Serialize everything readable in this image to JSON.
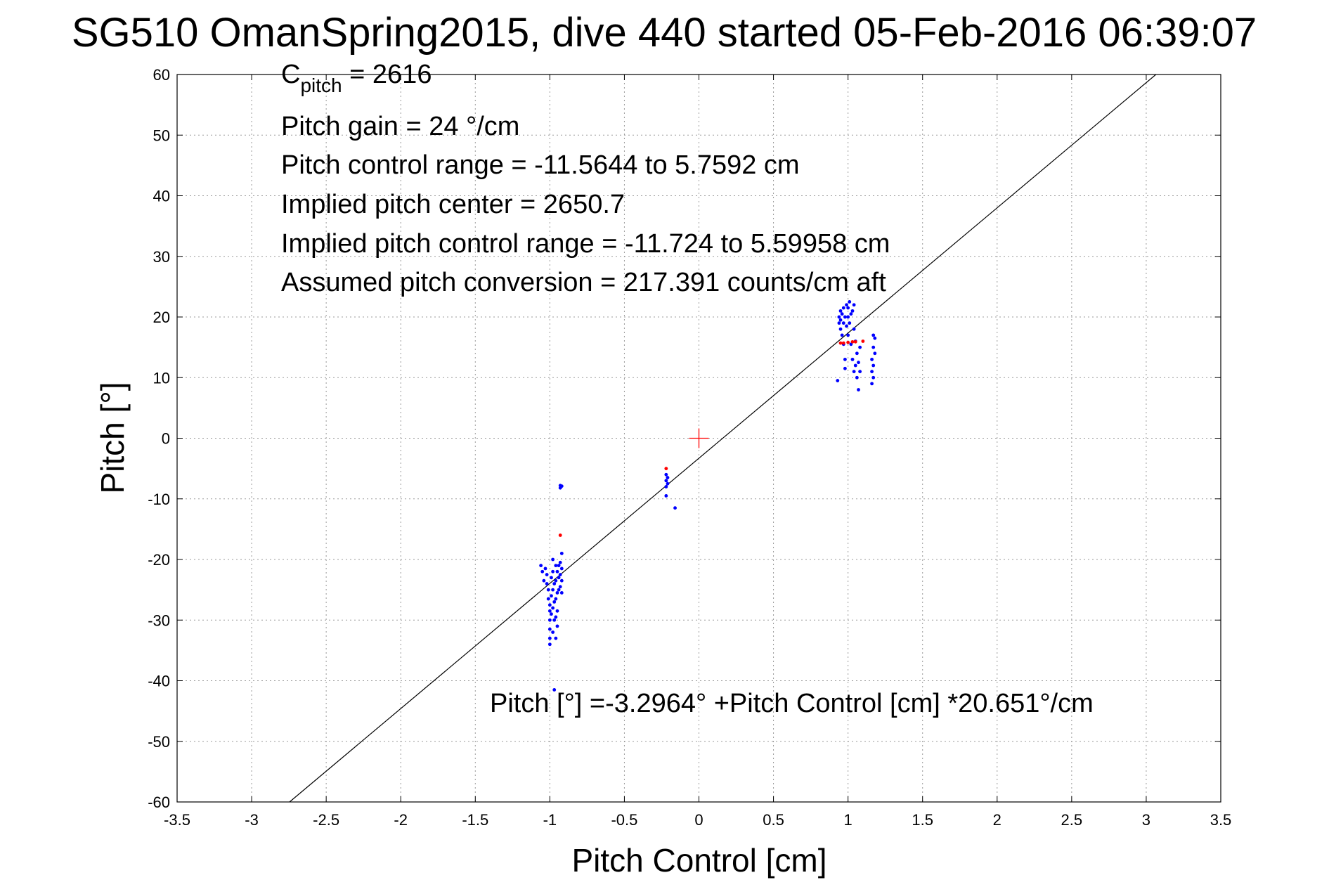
{
  "chart_data": {
    "type": "scatter",
    "title": "SG510 OmanSpring2015, dive 440 started 05-Feb-2016 06:39:07",
    "xlabel": "Pitch Control [cm]",
    "ylabel": "Pitch [°]",
    "xlim": [
      -3.5,
      3.5
    ],
    "ylim": [
      -60,
      60
    ],
    "xticks": [
      -3.5,
      -3,
      -2.5,
      -2,
      -1.5,
      -1,
      -0.5,
      0,
      0.5,
      1,
      1.5,
      2,
      2.5,
      3,
      3.5
    ],
    "yticks": [
      -60,
      -50,
      -40,
      -30,
      -20,
      -10,
      0,
      10,
      20,
      30,
      40,
      50,
      60
    ],
    "grid": true,
    "colors": {
      "main_points": "#0000ff",
      "flagged_points": "#ff0000",
      "fit_line": "#000000",
      "center_marker": "#ff0000"
    },
    "annotations": {
      "c_pitch_main": "C",
      "c_pitch_sub": "pitch",
      "c_pitch_value": " = 2616",
      "pitch_gain": "Pitch gain = 24 °/cm",
      "pitch_control_range": "Pitch control range = -11.5644 to 5.7592 cm",
      "implied_center": "Implied pitch center = 2650.7",
      "implied_range": "Implied pitch control range = -11.724 to 5.59958 cm",
      "assumed_conversion": "Assumed pitch conversion = 217.391 counts/cm aft",
      "fit_equation": "Pitch [°] =-3.2964° +Pitch Control [cm] *20.651°/cm"
    },
    "fit_line": {
      "intercept": -3.2964,
      "slope": 20.651
    },
    "center_marker": {
      "x": 0,
      "y": 0
    },
    "series": [
      {
        "marker": "dot",
        "points": [
          [
            -1.03,
            -21.5
          ],
          [
            -1.02,
            -22.5
          ],
          [
            -1.02,
            -24.0
          ],
          [
            -1.01,
            -25.0
          ],
          [
            -1.01,
            -26.5
          ],
          [
            -1.0,
            -27.5
          ],
          [
            -1.0,
            -28.5
          ],
          [
            -1.0,
            -30.0
          ],
          [
            -1.0,
            -31.5
          ],
          [
            -1.0,
            -33.0
          ],
          [
            -1.0,
            -34.0
          ],
          [
            -0.99,
            -23.0
          ],
          [
            -0.99,
            -26.0
          ],
          [
            -0.99,
            -29.0
          ],
          [
            -0.98,
            -20.0
          ],
          [
            -0.98,
            -22.0
          ],
          [
            -0.98,
            -25.0
          ],
          [
            -0.98,
            -28.0
          ],
          [
            -0.98,
            -32.0
          ],
          [
            -0.97,
            -24.0
          ],
          [
            -0.97,
            -27.0
          ],
          [
            -0.97,
            -30.0
          ],
          [
            -0.96,
            -21.0
          ],
          [
            -0.96,
            -23.5
          ],
          [
            -0.96,
            -26.5
          ],
          [
            -0.96,
            -29.5
          ],
          [
            -0.96,
            -33.0
          ],
          [
            -0.95,
            -22.0
          ],
          [
            -0.95,
            -25.5
          ],
          [
            -0.95,
            -28.5
          ],
          [
            -0.95,
            -31.0
          ],
          [
            -0.94,
            -21.0
          ],
          [
            -0.94,
            -23.0
          ],
          [
            -0.94,
            -25.0
          ],
          [
            -0.93,
            -20.5
          ],
          [
            -0.93,
            -22.5
          ],
          [
            -0.93,
            -24.5
          ],
          [
            -0.92,
            -19.0
          ],
          [
            -0.92,
            -21.5
          ],
          [
            -0.92,
            -23.5
          ],
          [
            -0.92,
            -25.5
          ],
          [
            -1.05,
            -22.0
          ],
          [
            -1.04,
            -23.5
          ],
          [
            -1.06,
            -21.0
          ],
          [
            -0.93,
            -7.8
          ],
          [
            -0.93,
            -8.2
          ],
          [
            -0.92,
            -7.9
          ],
          [
            -0.97,
            -41.5
          ],
          [
            -0.22,
            -6.0
          ],
          [
            -0.22,
            -7.0
          ],
          [
            -0.22,
            -8.0
          ],
          [
            -0.21,
            -6.5
          ],
          [
            -0.21,
            -7.5
          ],
          [
            -0.22,
            -9.5
          ],
          [
            -0.16,
            -11.5
          ],
          [
            0.94,
            19.0
          ],
          [
            0.94,
            20.0
          ],
          [
            0.95,
            18.0
          ],
          [
            0.95,
            19.5
          ],
          [
            0.95,
            21.0
          ],
          [
            0.96,
            17.0
          ],
          [
            0.96,
            20.5
          ],
          [
            0.97,
            19.0
          ],
          [
            0.97,
            21.5
          ],
          [
            0.97,
            15.5
          ],
          [
            0.98,
            13.0
          ],
          [
            0.98,
            11.5
          ],
          [
            0.98,
            20.0
          ],
          [
            0.99,
            18.5
          ],
          [
            0.99,
            22.0
          ],
          [
            1.0,
            20.0
          ],
          [
            1.0,
            21.5
          ],
          [
            1.0,
            17.0
          ],
          [
            1.01,
            19.0
          ],
          [
            1.01,
            22.5
          ],
          [
            1.02,
            20.5
          ],
          [
            1.02,
            15.5
          ],
          [
            1.03,
            13.0
          ],
          [
            1.03,
            21.0
          ],
          [
            1.04,
            11.0
          ],
          [
            1.04,
            18.0
          ],
          [
            1.04,
            22.0
          ],
          [
            1.05,
            12.0
          ],
          [
            1.05,
            16.0
          ],
          [
            1.06,
            10.0
          ],
          [
            1.06,
            14.0
          ],
          [
            1.07,
            8.0
          ],
          [
            1.07,
            12.5
          ],
          [
            1.08,
            15.0
          ],
          [
            1.08,
            11.0
          ],
          [
            0.93,
            9.5
          ],
          [
            1.16,
            9.0
          ],
          [
            1.16,
            11.0
          ],
          [
            1.16,
            13.0
          ],
          [
            1.17,
            15.0
          ],
          [
            1.17,
            17.0
          ],
          [
            1.17,
            10.0
          ],
          [
            1.17,
            12.0
          ],
          [
            1.18,
            14.0
          ],
          [
            1.18,
            16.5
          ]
        ]
      },
      {
        "marker": "dot",
        "points": [
          [
            -0.93,
            -16.0
          ],
          [
            -0.22,
            -5.0
          ],
          [
            0.95,
            15.7
          ],
          [
            0.97,
            15.7
          ],
          [
            1.0,
            15.8
          ],
          [
            1.03,
            15.9
          ],
          [
            1.05,
            15.9
          ],
          [
            1.1,
            16.0
          ]
        ]
      }
    ]
  }
}
